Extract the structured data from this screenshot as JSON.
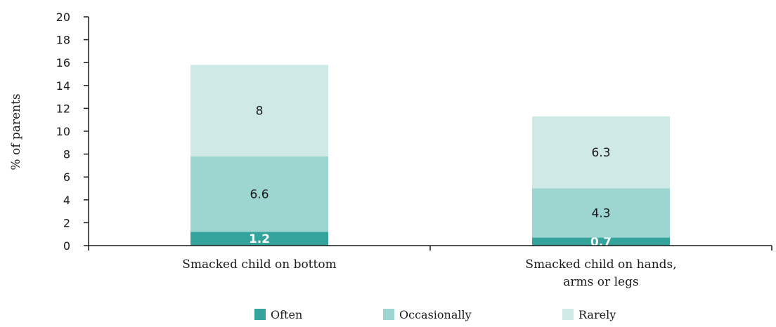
{
  "chart_data": {
    "type": "bar",
    "stacked": true,
    "ylabel": "% of parents",
    "xlabel": "",
    "ylim": [
      0,
      20
    ],
    "yticks": [
      0,
      2,
      4,
      6,
      8,
      10,
      12,
      14,
      16,
      18,
      20
    ],
    "categories": [
      [
        "Smacked child on bottom"
      ],
      [
        "Smacked child on hands,",
        "arms or legs"
      ]
    ],
    "series": [
      {
        "name": "Often",
        "values": [
          1.2,
          0.7
        ],
        "labels": [
          "1.2",
          "0.7"
        ],
        "color": "#33a39b",
        "label_color": "#ffffff"
      },
      {
        "name": "Occasionally",
        "values": [
          6.6,
          4.3
        ],
        "labels": [
          "6.6",
          "4.3"
        ],
        "color": "#9dd5d0",
        "label_color": "#1a1a1a"
      },
      {
        "name": "Rarely",
        "values": [
          8,
          6.3
        ],
        "labels": [
          "8",
          "6.3"
        ],
        "color": "#cfe9e7",
        "label_color": "#1a1a1a"
      }
    ],
    "legend": {
      "position": "bottom"
    },
    "grid": false,
    "axis_color": "#1a1a1a"
  }
}
